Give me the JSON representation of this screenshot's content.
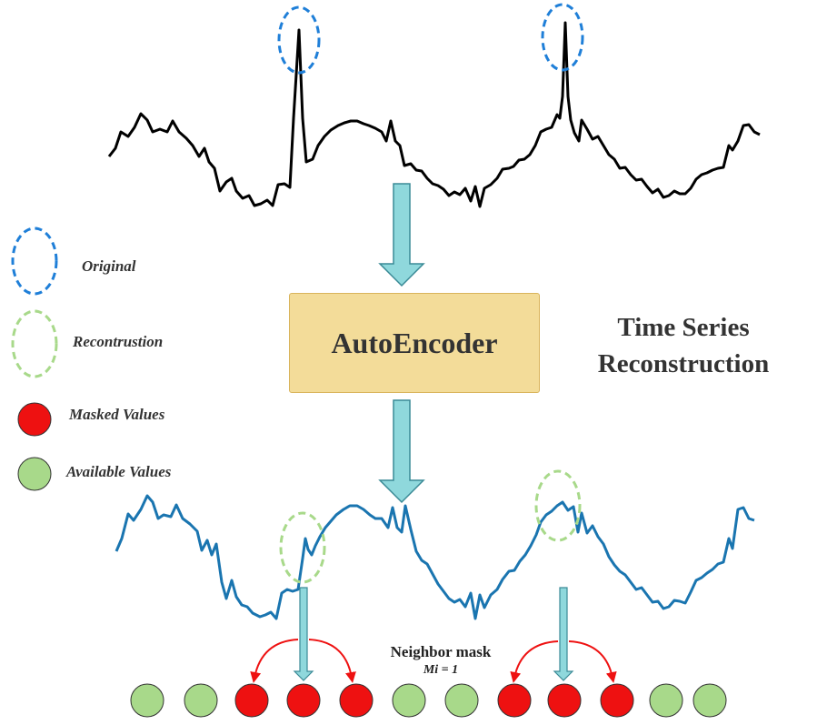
{
  "title": {
    "line1": "Time Series",
    "line2": "Reconstruction"
  },
  "autoencoder": {
    "label": "AutoEncoder"
  },
  "legend": [
    {
      "key": "original",
      "label": "Original",
      "marker": "dashed-ellipse",
      "color": "#1f7fd8"
    },
    {
      "key": "reconstruction",
      "label": "Recontrustion",
      "marker": "dashed-ellipse",
      "color": "#a8d98a"
    },
    {
      "key": "masked",
      "label": "Masked Values",
      "marker": "filled-circle",
      "color": "#ee1111"
    },
    {
      "key": "available",
      "label": "Available Values",
      "marker": "filled-circle",
      "color": "#a8d98a"
    }
  ],
  "neighbor_mask": {
    "title": "Neighbor mask",
    "formula": "Mi = 1"
  },
  "mask_sequence": [
    "available",
    "available",
    "masked",
    "masked",
    "masked",
    "available",
    "available",
    "masked",
    "masked",
    "masked",
    "available",
    "available"
  ],
  "colors": {
    "original_line": "#000000",
    "reconstructed_line": "#1a75b0",
    "arrow_fill": "#8fd8dc",
    "arrow_stroke": "#3a8a96",
    "autoencoder_fill": "#f3dc99",
    "curved_arrow": "#ee1111"
  }
}
